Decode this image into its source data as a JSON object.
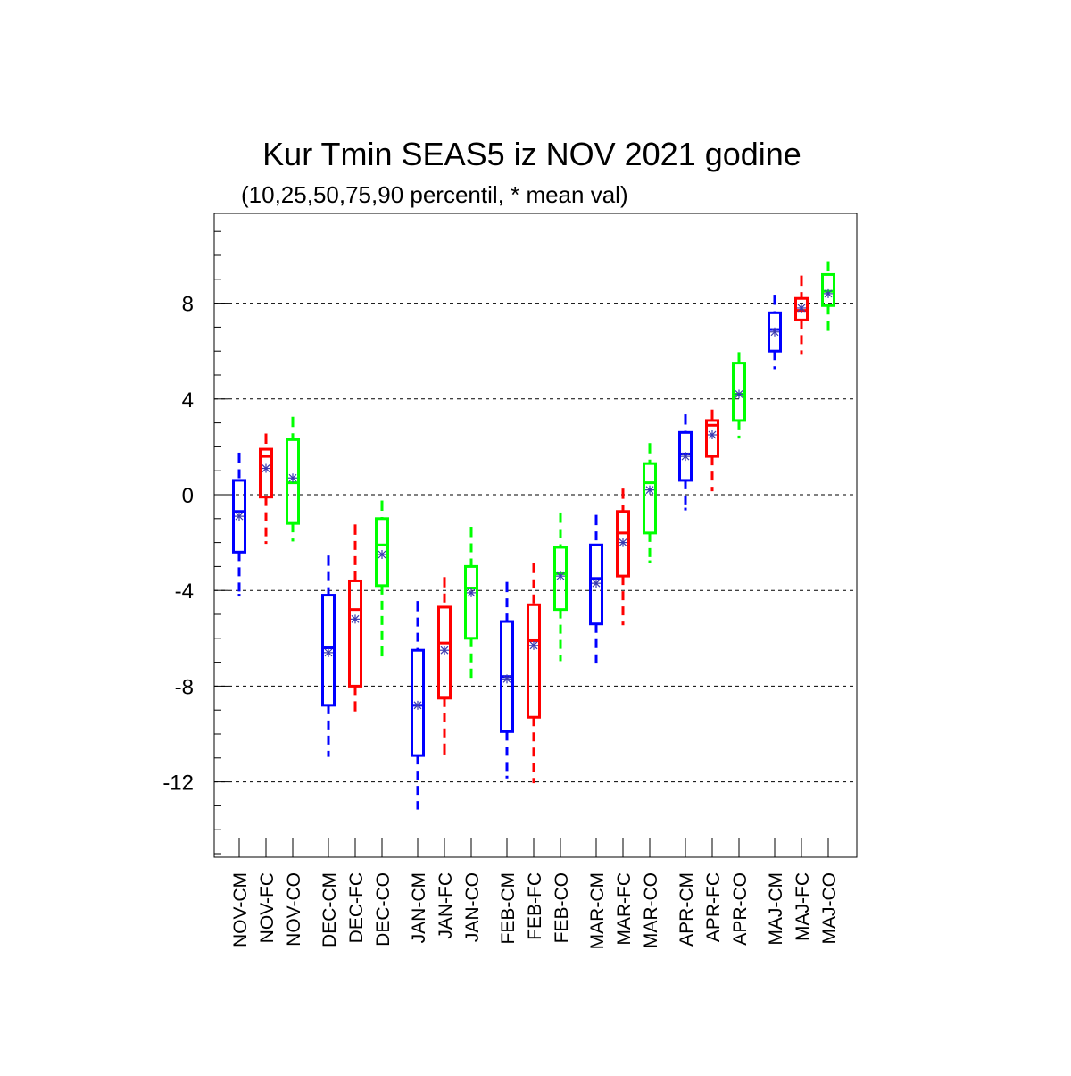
{
  "chart_data": {
    "type": "box",
    "title": "Kur Tmin SEAS5 iz NOV 2021 godine",
    "subtitle": "(10,25,50,75,90 percentil, * mean val)",
    "xlabel": "",
    "ylabel": "",
    "ylim": [
      -15,
      11.5
    ],
    "yticks": [
      8,
      4,
      0,
      -4,
      -8,
      -12
    ],
    "ytick_labels": [
      "8",
      "4",
      "0",
      "-4",
      "-8",
      "-12"
    ],
    "grid": "horizontal dashed at major ticks",
    "legend": "none",
    "series_colors": {
      "CM": "#0000ff",
      "FC": "#ff0000",
      "CO": "#00ff00"
    },
    "categories": [
      "NOV-CM",
      "NOV-FC",
      "NOV-CO",
      "DEC-CM",
      "DEC-FC",
      "DEC-CO",
      "JAN-CM",
      "JAN-FC",
      "JAN-CO",
      "FEB-CM",
      "FEB-FC",
      "FEB-CO",
      "MAR-CM",
      "MAR-FC",
      "MAR-CO",
      "APR-CM",
      "APR-FC",
      "APR-CO",
      "MAJ-CM",
      "MAJ-FC",
      "MAJ-CO"
    ],
    "boxes": [
      {
        "label": "NOV-CM",
        "group": "CM",
        "p10": -4.2,
        "p25": -2.4,
        "p50": -0.7,
        "p75": 0.6,
        "p90": 1.7,
        "mean": -0.9
      },
      {
        "label": "NOV-FC",
        "group": "FC",
        "p10": -2.0,
        "p25": -0.1,
        "p50": 1.6,
        "p75": 1.9,
        "p90": 2.5,
        "mean": 1.1
      },
      {
        "label": "NOV-CO",
        "group": "CO",
        "p10": -1.9,
        "p25": -1.2,
        "p50": 0.5,
        "p75": 2.3,
        "p90": 3.2,
        "mean": 0.7
      },
      {
        "label": "DEC-CM",
        "group": "CM",
        "p10": -10.9,
        "p25": -8.8,
        "p50": -6.4,
        "p75": -4.2,
        "p90": -2.6,
        "mean": -6.6
      },
      {
        "label": "DEC-FC",
        "group": "FC",
        "p10": -9.0,
        "p25": -8.0,
        "p50": -4.8,
        "p75": -3.6,
        "p90": -1.3,
        "mean": -5.2
      },
      {
        "label": "DEC-CO",
        "group": "CO",
        "p10": -6.7,
        "p25": -3.8,
        "p50": -2.1,
        "p75": -1.0,
        "p90": -0.3,
        "mean": -2.5
      },
      {
        "label": "JAN-CM",
        "group": "CM",
        "p10": -13.1,
        "p25": -10.9,
        "p50": -8.8,
        "p75": -6.5,
        "p90": -4.5,
        "mean": -8.8
      },
      {
        "label": "JAN-FC",
        "group": "FC",
        "p10": -10.8,
        "p25": -8.5,
        "p50": -6.2,
        "p75": -4.7,
        "p90": -3.5,
        "mean": -6.5
      },
      {
        "label": "JAN-CO",
        "group": "CO",
        "p10": -7.6,
        "p25": -6.0,
        "p50": -3.9,
        "p75": -3.0,
        "p90": -1.4,
        "mean": -4.1
      },
      {
        "label": "FEB-CM",
        "group": "CM",
        "p10": -11.8,
        "p25": -9.9,
        "p50": -7.6,
        "p75": -5.3,
        "p90": -3.7,
        "mean": -7.7
      },
      {
        "label": "FEB-FC",
        "group": "FC",
        "p10": -12.0,
        "p25": -9.3,
        "p50": -6.1,
        "p75": -4.6,
        "p90": -2.9,
        "mean": -6.3
      },
      {
        "label": "FEB-CO",
        "group": "CO",
        "p10": -6.9,
        "p25": -4.8,
        "p50": -3.3,
        "p75": -2.2,
        "p90": -0.8,
        "mean": -3.4
      },
      {
        "label": "MAR-CM",
        "group": "CM",
        "p10": -7.0,
        "p25": -5.4,
        "p50": -3.5,
        "p75": -2.1,
        "p90": -0.9,
        "mean": -3.7
      },
      {
        "label": "MAR-FC",
        "group": "FC",
        "p10": -5.4,
        "p25": -3.4,
        "p50": -1.6,
        "p75": -0.7,
        "p90": 0.2,
        "mean": -2.0
      },
      {
        "label": "MAR-CO",
        "group": "CO",
        "p10": -2.8,
        "p25": -1.6,
        "p50": 0.5,
        "p75": 1.3,
        "p90": 2.1,
        "mean": 0.2
      },
      {
        "label": "APR-CM",
        "group": "CM",
        "p10": -0.6,
        "p25": 0.6,
        "p50": 1.7,
        "p75": 2.6,
        "p90": 3.3,
        "mean": 1.6
      },
      {
        "label": "APR-FC",
        "group": "FC",
        "p10": 0.2,
        "p25": 1.6,
        "p50": 2.9,
        "p75": 3.1,
        "p90": 3.5,
        "mean": 2.5
      },
      {
        "label": "APR-CO",
        "group": "CO",
        "p10": 2.4,
        "p25": 3.1,
        "p50": 4.2,
        "p75": 5.5,
        "p90": 5.9,
        "mean": 4.2
      },
      {
        "label": "MAJ-CM",
        "group": "CM",
        "p10": 5.3,
        "p25": 6.0,
        "p50": 6.9,
        "p75": 7.6,
        "p90": 8.3,
        "mean": 6.8
      },
      {
        "label": "MAJ-FC",
        "group": "FC",
        "p10": 5.9,
        "p25": 7.3,
        "p50": 7.7,
        "p75": 8.2,
        "p90": 9.1,
        "mean": 7.8
      },
      {
        "label": "MAJ-CO",
        "group": "CO",
        "p10": 6.9,
        "p25": 7.9,
        "p50": 8.5,
        "p75": 9.2,
        "p90": 9.7,
        "mean": 8.4
      }
    ]
  }
}
